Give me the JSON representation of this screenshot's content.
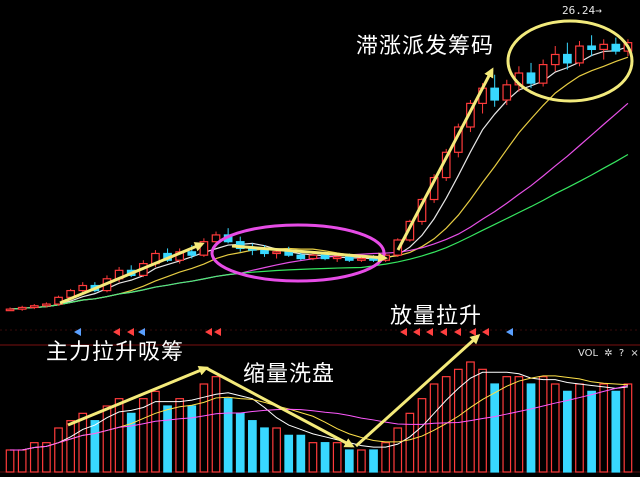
{
  "chart_data": {
    "type": "candlestick+volume",
    "price_max_label": "26.24",
    "volume_label": "VOL",
    "volume_icons": [
      "gear-icon",
      "help-icon",
      "close-icon"
    ],
    "annotations": [
      {
        "id": "stagnant",
        "text": "滞涨派发筹码"
      },
      {
        "id": "absorb",
        "text": "主力拉升吸筹"
      },
      {
        "id": "washout",
        "text": "缩量洗盘"
      },
      {
        "id": "breakout",
        "text": "放量拉升"
      }
    ],
    "colors": {
      "up": "#ff3b3b",
      "down": "#38d8ff",
      "arrow": "#f4ea7a",
      "ellipse_mid": "#e64ce6",
      "ellipse_top": "#f2ea7c",
      "ma5": "#ffffff",
      "ma10": "#ffe24a",
      "ma20": "#ff59ff",
      "ma60": "#3cff6a",
      "grid": "#7a1010"
    },
    "candles": [
      [
        10.0,
        10.1,
        9.9,
        10.0
      ],
      [
        10.0,
        10.2,
        9.9,
        10.1
      ],
      [
        10.1,
        10.3,
        10.0,
        10.2
      ],
      [
        10.2,
        10.4,
        10.1,
        10.3
      ],
      [
        10.3,
        10.8,
        10.2,
        10.7
      ],
      [
        10.7,
        11.2,
        10.6,
        11.1
      ],
      [
        11.1,
        11.6,
        10.9,
        11.4
      ],
      [
        11.4,
        11.6,
        11.0,
        11.1
      ],
      [
        11.1,
        12.0,
        11.0,
        11.8
      ],
      [
        11.8,
        12.5,
        11.6,
        12.3
      ],
      [
        12.3,
        12.6,
        11.9,
        12.0
      ],
      [
        12.0,
        12.9,
        11.9,
        12.7
      ],
      [
        12.7,
        13.5,
        12.5,
        13.3
      ],
      [
        13.3,
        13.6,
        12.8,
        12.9
      ],
      [
        12.9,
        13.6,
        12.7,
        13.4
      ],
      [
        13.4,
        13.8,
        13.0,
        13.2
      ],
      [
        13.2,
        14.2,
        13.1,
        14.0
      ],
      [
        14.0,
        14.6,
        13.7,
        14.4
      ],
      [
        14.4,
        14.8,
        13.9,
        14.0
      ],
      [
        14.0,
        14.3,
        13.4,
        13.6
      ],
      [
        13.6,
        13.9,
        13.2,
        13.5
      ],
      [
        13.5,
        13.8,
        13.1,
        13.3
      ],
      [
        13.3,
        13.6,
        13.0,
        13.4
      ],
      [
        13.4,
        13.7,
        13.1,
        13.2
      ],
      [
        13.2,
        13.5,
        12.9,
        13.0
      ],
      [
        13.0,
        13.4,
        12.9,
        13.2
      ],
      [
        13.2,
        13.4,
        12.9,
        13.0
      ],
      [
        13.0,
        13.3,
        12.8,
        13.1
      ],
      [
        13.1,
        13.3,
        12.8,
        12.9
      ],
      [
        12.9,
        13.2,
        12.8,
        13.0
      ],
      [
        13.0,
        13.2,
        12.8,
        12.9
      ],
      [
        12.9,
        13.3,
        12.8,
        13.2
      ],
      [
        13.2,
        14.2,
        13.1,
        14.1
      ],
      [
        14.1,
        15.3,
        14.0,
        15.2
      ],
      [
        15.2,
        16.6,
        15.0,
        16.5
      ],
      [
        16.5,
        18.0,
        16.3,
        17.8
      ],
      [
        17.8,
        19.5,
        17.6,
        19.3
      ],
      [
        19.3,
        21.0,
        19.0,
        20.8
      ],
      [
        20.8,
        22.4,
        20.5,
        22.2
      ],
      [
        22.2,
        23.4,
        21.6,
        23.1
      ],
      [
        23.1,
        23.9,
        22.0,
        22.4
      ],
      [
        22.4,
        23.6,
        22.1,
        23.3
      ],
      [
        23.3,
        24.4,
        22.9,
        24.0
      ],
      [
        24.0,
        24.6,
        23.1,
        23.4
      ],
      [
        23.4,
        24.8,
        23.2,
        24.5
      ],
      [
        24.5,
        25.6,
        24.1,
        25.1
      ],
      [
        25.1,
        25.8,
        24.2,
        24.6
      ],
      [
        24.6,
        25.9,
        24.4,
        25.6
      ],
      [
        25.6,
        26.24,
        25.0,
        25.4
      ],
      [
        25.4,
        26.0,
        24.8,
        25.7
      ],
      [
        25.7,
        26.1,
        25.1,
        25.3
      ],
      [
        25.3,
        26.0,
        25.0,
        25.8
      ]
    ],
    "volumes": [
      3,
      3,
      4,
      4,
      6,
      7,
      8,
      7,
      9,
      10,
      8,
      10,
      11,
      9,
      10,
      9,
      12,
      13,
      10,
      8,
      7,
      6,
      6,
      5,
      5,
      4,
      4,
      4,
      3,
      3,
      3,
      4,
      6,
      8,
      10,
      12,
      13,
      14,
      15,
      14,
      12,
      13,
      13,
      12,
      13,
      12,
      11,
      12,
      11,
      12,
      11,
      12
    ],
    "price_range": [
      9.0,
      27.5
    ]
  }
}
